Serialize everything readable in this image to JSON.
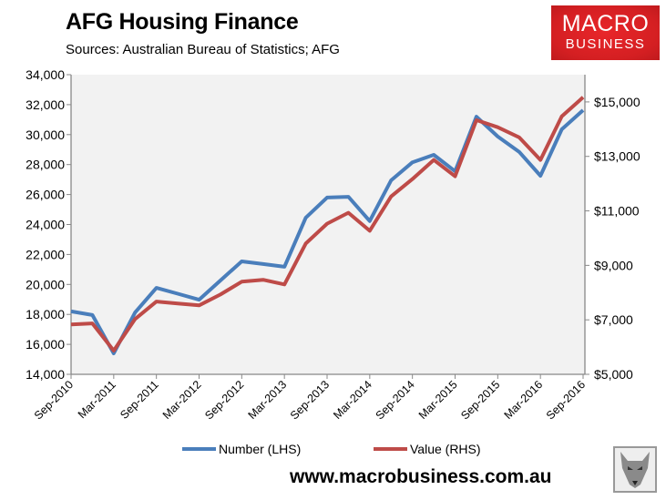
{
  "header": {
    "title": "AFG Housing Finance",
    "subtitle": "Sources: Australian Bureau of Statistics; AFG"
  },
  "logo": {
    "line1": "MACRO",
    "line2": "BUSINESS",
    "color": "#d41f22"
  },
  "footer": {
    "url": "www.macrobusiness.com.au",
    "mascot": "wolf-icon"
  },
  "chart_data": {
    "type": "line",
    "title": "AFG Housing Finance",
    "x": [
      "Sep-2010",
      "Dec-2010",
      "Mar-2011",
      "Jun-2011",
      "Sep-2011",
      "Dec-2011",
      "Mar-2012",
      "Jun-2012",
      "Sep-2012",
      "Dec-2012",
      "Mar-2013",
      "Jun-2013",
      "Sep-2013",
      "Dec-2013",
      "Mar-2014",
      "Jun-2014",
      "Sep-2014",
      "Dec-2014",
      "Mar-2015",
      "Jun-2015",
      "Sep-2015",
      "Dec-2015",
      "Mar-2016",
      "Jun-2016",
      "Sep-2016"
    ],
    "x_tick_labels": [
      "Sep-2010",
      "Mar-2011",
      "Sep-2011",
      "Mar-2012",
      "Sep-2012",
      "Mar-2013",
      "Sep-2013",
      "Mar-2014",
      "Sep-2014",
      "Mar-2015",
      "Sep-2015",
      "Mar-2016",
      "Sep-2016"
    ],
    "series": [
      {
        "name": "Number (LHS)",
        "axis": "left",
        "color": "#4a7ebb",
        "values": [
          18200,
          17960,
          15400,
          18130,
          19770,
          19380,
          18980,
          20260,
          21540,
          21360,
          21180,
          24450,
          25800,
          25850,
          24230,
          26950,
          28150,
          28650,
          27550,
          31200,
          29870,
          28850,
          27250,
          30350,
          31630
        ]
      },
      {
        "name": "Value (RHS)",
        "axis": "right",
        "color": "#be4b48",
        "values": [
          6830,
          6870,
          5870,
          7030,
          7670,
          7600,
          7530,
          7930,
          8400,
          8470,
          8300,
          9800,
          10530,
          10930,
          10270,
          11530,
          12170,
          12870,
          12270,
          14330,
          14070,
          13700,
          12870,
          14470,
          15170
        ]
      }
    ],
    "y_left": {
      "lim": [
        14000,
        34000
      ],
      "ticks": [
        "14,000",
        "16,000",
        "18,000",
        "20,000",
        "22,000",
        "24,000",
        "26,000",
        "28,000",
        "30,000",
        "32,000",
        "34,000"
      ]
    },
    "y_right": {
      "lim": [
        5000,
        16000
      ],
      "ticks": [
        "$5,000",
        "$7,000",
        "$9,000",
        "$11,000",
        "$13,000",
        "$15,000"
      ]
    },
    "legend": "bottom",
    "grid": false,
    "plot_bg": "#f2f2f2"
  }
}
